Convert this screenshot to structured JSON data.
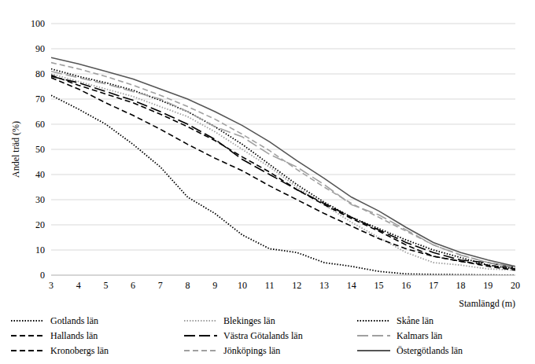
{
  "chart_data": {
    "type": "line",
    "x_label": "Stamlängd (m)",
    "y_label": "Andel träd (%)",
    "x": [
      3,
      4,
      5,
      6,
      7,
      8,
      9,
      10,
      11,
      12,
      13,
      14,
      15,
      16,
      17,
      18,
      19,
      20
    ],
    "xlim": [
      3,
      20
    ],
    "xticks": [
      3,
      4,
      5,
      6,
      7,
      8,
      9,
      10,
      11,
      12,
      13,
      14,
      15,
      16,
      17,
      18,
      19,
      20
    ],
    "ylim": [
      0,
      100
    ],
    "yticks": [
      0,
      10,
      20,
      30,
      40,
      50,
      60,
      70,
      80,
      90,
      100
    ],
    "grid": true,
    "legend": "bottom",
    "series": [
      {
        "name": "Gotlands län",
        "color": "#000000",
        "line_style": "dotted",
        "values": [
          71.5,
          66,
          60,
          52,
          43,
          31,
          24.5,
          16,
          10.5,
          9,
          5,
          3.5,
          1.5,
          0.5,
          0.3,
          0.2,
          0.1,
          0
        ]
      },
      {
        "name": "Blekinges län",
        "color": "#a0a0a0",
        "line_style": "dotted",
        "values": [
          80,
          77,
          74,
          71,
          67,
          63,
          57,
          50,
          43,
          35,
          28,
          21,
          15,
          9,
          5,
          4,
          2.5,
          2
        ]
      },
      {
        "name": "Skåne län",
        "color": "#000000",
        "line_style": "dotted",
        "values": [
          82,
          79,
          76.5,
          73.5,
          69.5,
          65,
          59,
          52,
          44,
          36,
          29,
          23,
          18.5,
          14,
          10,
          7,
          4,
          2.5
        ]
      },
      {
        "name": "Hallands län",
        "color": "#000000",
        "line_style": "dashed",
        "values": [
          79.5,
          75.5,
          72,
          68.5,
          64,
          59,
          53.5,
          47,
          41,
          34,
          28,
          22.5,
          17.5,
          12,
          7.5,
          5.5,
          4,
          2.5
        ]
      },
      {
        "name": "Västra Götalands län",
        "color": "#000000",
        "line_style": "long_dash",
        "values": [
          79,
          76.5,
          73,
          69.5,
          65,
          60,
          54,
          46,
          40,
          34,
          28.5,
          23,
          18,
          13,
          9,
          6,
          5,
          3
        ]
      },
      {
        "name": "Kalmars län",
        "color": "#a0a0a0",
        "line_style": "long_dash",
        "values": [
          81,
          78.5,
          76,
          73,
          70,
          65,
          59,
          55,
          48,
          43,
          36,
          28,
          24,
          18,
          12,
          8,
          5,
          3.5
        ]
      },
      {
        "name": "Kronobergs län",
        "color": "#000000",
        "line_style": "dashed",
        "values": [
          78.5,
          74,
          68.5,
          63.5,
          58,
          52,
          46.5,
          41.5,
          35.5,
          30,
          24.5,
          19.5,
          14.5,
          10.5,
          7.5,
          5.5,
          3.5,
          2
        ]
      },
      {
        "name": "Jönköpings län",
        "color": "#a0a0a0",
        "line_style": "dashed",
        "values": [
          84.5,
          82,
          79,
          75.5,
          71.5,
          67,
          62,
          56,
          49.5,
          42,
          35,
          28.5,
          23,
          17.5,
          12,
          8,
          5,
          3
        ]
      },
      {
        "name": "Östergötlands län",
        "color": "#555555",
        "line_style": "solid",
        "values": [
          86.5,
          84,
          81,
          78,
          74,
          70,
          65,
          59.5,
          53,
          45.5,
          38.5,
          31,
          25.5,
          19,
          13,
          9,
          6,
          3.5
        ]
      }
    ]
  }
}
